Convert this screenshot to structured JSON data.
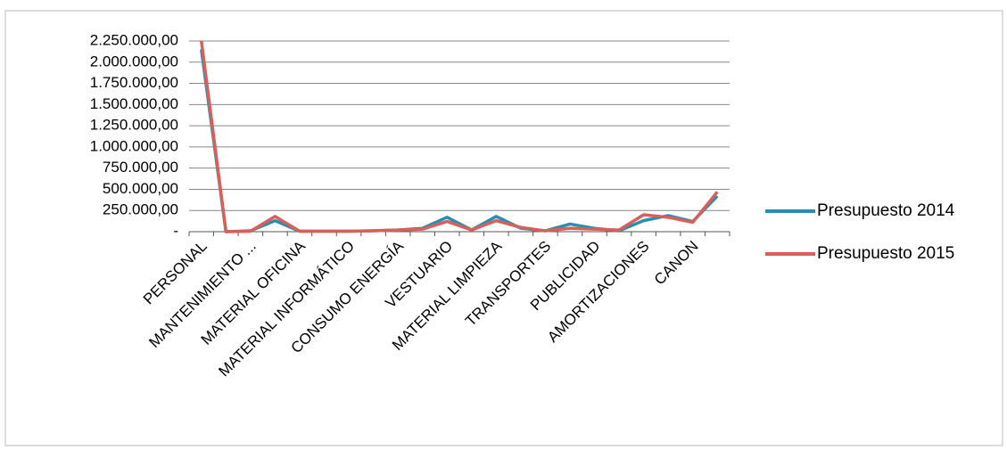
{
  "chart_data": {
    "type": "line",
    "categories": [
      "PERSONAL",
      null,
      "MANTENIMIENTO ...",
      null,
      "MATERIAL OFICINA",
      null,
      "MATERIAL INFORMÁTICO",
      null,
      "CONSUMO ENERGÍA",
      null,
      "VESTUARIO",
      null,
      "MATERIAL LIMPIEZA",
      null,
      "TRANSPORTES",
      null,
      "PUBLICIDAD",
      null,
      "AMORTIZACIONES",
      null,
      "CANON",
      null
    ],
    "series": [
      {
        "name": "Presupuesto 2014",
        "color": "#2a8fae",
        "values": [
          2150000,
          0,
          10000,
          130000,
          5000,
          5000,
          5000,
          10000,
          20000,
          40000,
          170000,
          20000,
          180000,
          40000,
          10000,
          90000,
          40000,
          10000,
          130000,
          190000,
          120000,
          420000
        ]
      },
      {
        "name": "Presupuesto 2015",
        "color": "#d9605a",
        "values": [
          2250000,
          0,
          5000,
          180000,
          5000,
          5000,
          5000,
          10000,
          20000,
          30000,
          120000,
          20000,
          130000,
          50000,
          10000,
          40000,
          30000,
          20000,
          200000,
          170000,
          110000,
          470000
        ]
      }
    ],
    "ylim": [
      0,
      2250000
    ],
    "yticks": [
      {
        "value": 0,
        "label": "-"
      },
      {
        "value": 250000,
        "label": "250.000,00"
      },
      {
        "value": 500000,
        "label": "500.000,00"
      },
      {
        "value": 750000,
        "label": "750.000,00"
      },
      {
        "value": 1000000,
        "label": "1.000.000,00"
      },
      {
        "value": 1250000,
        "label": "1.250.000,00"
      },
      {
        "value": 1500000,
        "label": "1.500.000,00"
      },
      {
        "value": 1750000,
        "label": "1.750.000,00"
      },
      {
        "value": 2000000,
        "label": "2.000.000,00"
      },
      {
        "value": 2250000,
        "label": "2.250.000,00"
      }
    ],
    "grid": true,
    "legend": "right"
  }
}
